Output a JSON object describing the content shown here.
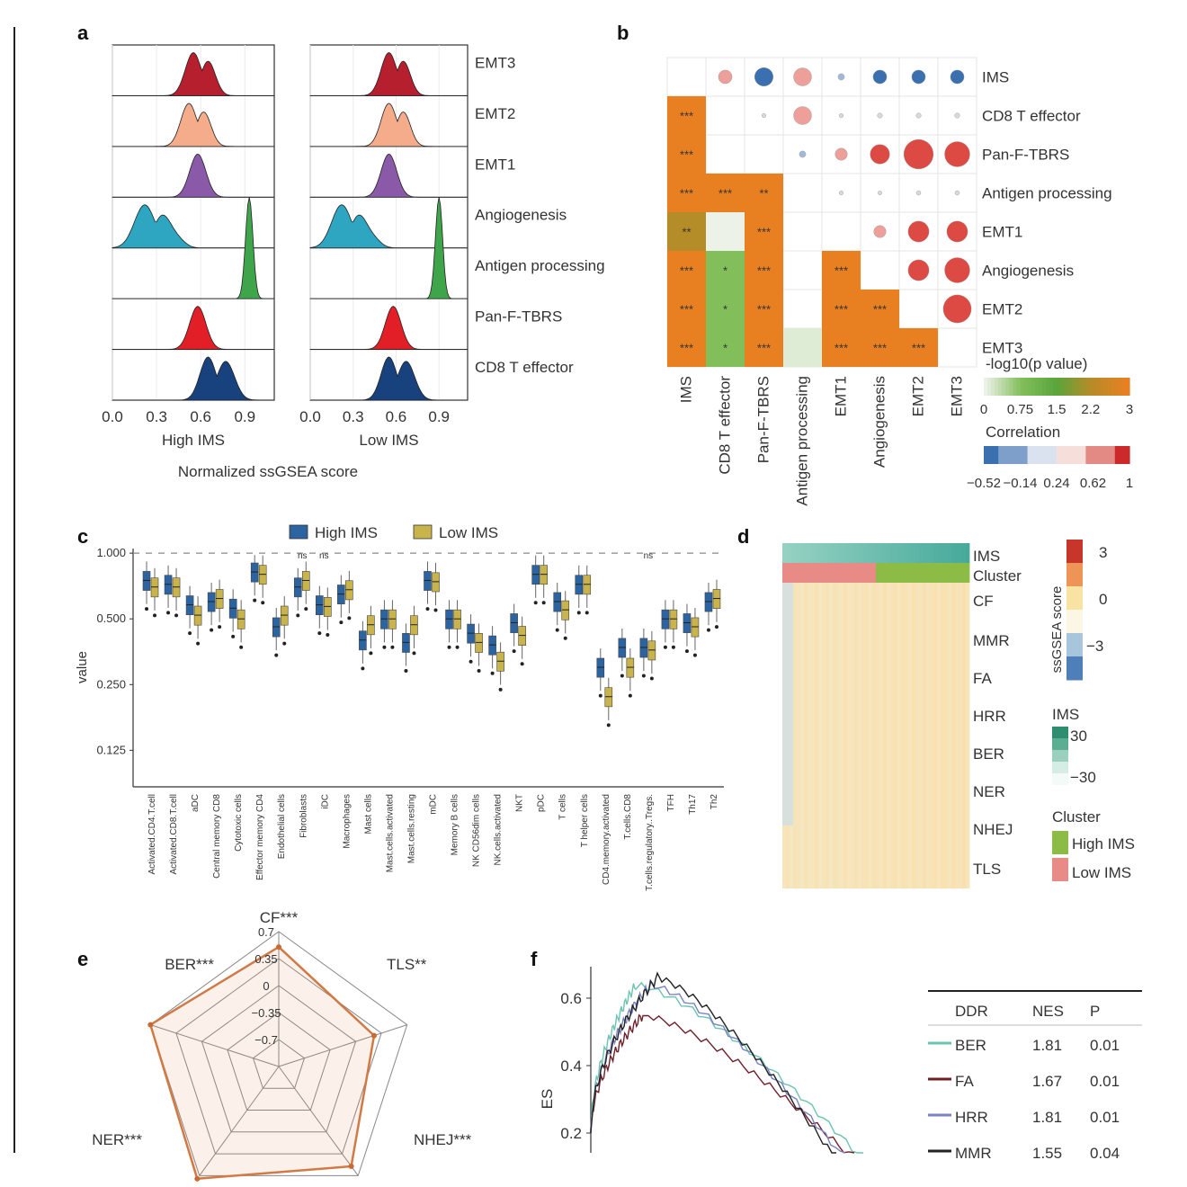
{
  "panels": [
    "a",
    "b",
    "c",
    "d",
    "e",
    "f"
  ],
  "chart_data": [
    {
      "id": "a",
      "type": "area",
      "subtype": "ridgeline",
      "facets": [
        "High IMS",
        "Low IMS"
      ],
      "xlabel": "Normalized ssGSEA score",
      "xticks": [
        "0.0",
        "0.3",
        "0.6",
        "0.9"
      ],
      "xlim": [
        0,
        1.1
      ],
      "series": [
        {
          "name": "EMT3",
          "color": "#b51f2e",
          "peak": {
            "High IMS": 0.55,
            "Low IMS": 0.55
          }
        },
        {
          "name": "EMT2",
          "color": "#f5ac8b",
          "peak": {
            "High IMS": 0.52,
            "Low IMS": 0.55
          }
        },
        {
          "name": "EMT1",
          "color": "#8a5aa8",
          "peak": {
            "High IMS": 0.58,
            "Low IMS": 0.55
          }
        },
        {
          "name": "Angiogenesis",
          "color": "#2ea6c2",
          "peak": {
            "High IMS": 0.22,
            "Low IMS": 0.22
          }
        },
        {
          "name": "Antigen processing",
          "color": "#3fa54a",
          "peak": {
            "High IMS": 0.93,
            "Low IMS": 0.9
          }
        },
        {
          "name": "Pan-F-TBRS",
          "color": "#e21f26",
          "peak": {
            "High IMS": 0.58,
            "Low IMS": 0.58
          }
        },
        {
          "name": "CD8 T effector",
          "color": "#17427e",
          "peak": {
            "High IMS": 0.65,
            "Low IMS": 0.55
          }
        }
      ]
    },
    {
      "id": "b",
      "type": "heatmap",
      "subtype": "correlation matrix (lower: -log10 p, upper: correlation)",
      "rows": [
        "IMS",
        "CD8 T effector",
        "Pan-F-TBRS",
        "Antigen processing",
        "EMT1",
        "Angiogenesis",
        "EMT2",
        "EMT3"
      ],
      "columns": [
        "IMS",
        "CD8 T effector",
        "Pan-F-TBRS",
        "Antigen processing",
        "EMT1",
        "Angiogenesis",
        "EMT2",
        "EMT3"
      ],
      "lower": [
        [
          1,
          0,
          "***"
        ],
        [
          2,
          0,
          "***"
        ],
        [
          3,
          0,
          "***"
        ],
        [
          3,
          1,
          "***"
        ],
        [
          3,
          2,
          "**"
        ],
        [
          4,
          0,
          "**"
        ],
        [
          4,
          1,
          ""
        ],
        [
          4,
          2,
          "***"
        ],
        [
          5,
          0,
          "***"
        ],
        [
          5,
          1,
          "*"
        ],
        [
          5,
          2,
          "***"
        ],
        [
          5,
          4,
          "***"
        ],
        [
          6,
          0,
          "***"
        ],
        [
          6,
          1,
          "*"
        ],
        [
          6,
          2,
          "***"
        ],
        [
          6,
          4,
          "***"
        ],
        [
          6,
          5,
          "***"
        ],
        [
          7,
          0,
          "***"
        ],
        [
          7,
          1,
          "*"
        ],
        [
          7,
          2,
          "***"
        ],
        [
          7,
          3,
          ""
        ],
        [
          7,
          4,
          "***"
        ],
        [
          7,
          5,
          "***"
        ],
        [
          7,
          6,
          "***"
        ]
      ],
      "lower_values": [
        3,
        3,
        3,
        3,
        3,
        2.2,
        0,
        3,
        3,
        0.75,
        3,
        3,
        3,
        0.75,
        3,
        3,
        3,
        3,
        0.75,
        3,
        0.1,
        3,
        3,
        3
      ],
      "upper": [
        {
          "r": 0,
          "c": 1,
          "corr": 0.35
        },
        {
          "r": 0,
          "c": 2,
          "corr": -0.52
        },
        {
          "r": 0,
          "c": 3,
          "corr": 0.5
        },
        {
          "r": 0,
          "c": 4,
          "corr": -0.1
        },
        {
          "r": 0,
          "c": 5,
          "corr": -0.35
        },
        {
          "r": 0,
          "c": 6,
          "corr": -0.35
        },
        {
          "r": 0,
          "c": 7,
          "corr": -0.35
        },
        {
          "r": 1,
          "c": 2,
          "corr": 0.02
        },
        {
          "r": 1,
          "c": 3,
          "corr": 0.5
        },
        {
          "r": 1,
          "c": 4,
          "corr": 0.02
        },
        {
          "r": 1,
          "c": 5,
          "corr": 0.05
        },
        {
          "r": 1,
          "c": 6,
          "corr": 0.05
        },
        {
          "r": 1,
          "c": 7,
          "corr": 0.05
        },
        {
          "r": 2,
          "c": 3,
          "corr": -0.1
        },
        {
          "r": 2,
          "c": 4,
          "corr": 0.3
        },
        {
          "r": 2,
          "c": 5,
          "corr": 0.55
        },
        {
          "r": 2,
          "c": 6,
          "corr": 0.9
        },
        {
          "r": 2,
          "c": 7,
          "corr": 0.75
        },
        {
          "r": 3,
          "c": 4,
          "corr": 0.02
        },
        {
          "r": 3,
          "c": 5,
          "corr": 0.02
        },
        {
          "r": 3,
          "c": 6,
          "corr": 0.03
        },
        {
          "r": 3,
          "c": 7,
          "corr": 0.03
        },
        {
          "r": 4,
          "c": 5,
          "corr": 0.3
        },
        {
          "r": 4,
          "c": 6,
          "corr": 0.6
        },
        {
          "r": 4,
          "c": 7,
          "corr": 0.6
        },
        {
          "r": 5,
          "c": 6,
          "corr": 0.6
        },
        {
          "r": 5,
          "c": 7,
          "corr": 0.75
        },
        {
          "r": 6,
          "c": 7,
          "corr": 0.85
        }
      ],
      "legend_p": {
        "title": "-log10(p value)",
        "ticks": [
          "0",
          "0.75",
          "1.5",
          "2.2",
          "3"
        ]
      },
      "legend_corr": {
        "title": "Correlation",
        "ticks": [
          "−0.52",
          "−0.14",
          "0.24",
          "0.62",
          "1"
        ]
      }
    },
    {
      "id": "c",
      "type": "box",
      "ylabel": "value",
      "ylog": true,
      "yticks": [
        "1.000",
        "0.500",
        "0.250",
        "0.125"
      ],
      "ytick_values": [
        1.0,
        0.5,
        0.25,
        0.125
      ],
      "legend": [
        "High IMS",
        "Low IMS"
      ],
      "categories": [
        "Activated.CD4.T.cell",
        "Activated.CD8.T.cell",
        "aDC",
        "Central memory CD8",
        "Cytotoxic cells",
        "Effector memory CD4",
        "Endothelial cells",
        "Fibroblasts",
        "iDC",
        "Macrophages",
        "Mast cells",
        "Mast.cells.activated",
        "Mast.cells.resting",
        "mDC",
        "Memory B cells",
        "NK CD56dim cells",
        "NK.cells.activated",
        "NKT",
        "pDC",
        "T cells",
        "T helper cells",
        "CD4.memory.activated",
        "T.cells.CD8",
        "T.cells.regulatory..Tregs.",
        "TFH",
        "Th17",
        "Th2"
      ],
      "annotations": [
        {
          "category": "Fibroblasts",
          "text": "ns"
        },
        {
          "category": "iDC",
          "text": "ns"
        },
        {
          "category": "T.cells.regulatory..Tregs.",
          "text": "ns"
        }
      ],
      "series": [
        {
          "name": "High IMS",
          "median": [
            0.75,
            0.72,
            0.58,
            0.6,
            0.56,
            0.82,
            0.46,
            0.7,
            0.58,
            0.65,
            0.4,
            0.5,
            0.39,
            0.75,
            0.5,
            0.43,
            0.38,
            0.48,
            0.8,
            0.6,
            0.72,
            0.3,
            0.37,
            0.37,
            0.5,
            0.48,
            0.6
          ]
        },
        {
          "name": "Low IMS",
          "median": [
            0.7,
            0.7,
            0.52,
            0.62,
            0.5,
            0.8,
            0.52,
            0.75,
            0.57,
            0.68,
            0.47,
            0.5,
            0.47,
            0.74,
            0.5,
            0.39,
            0.32,
            0.42,
            0.8,
            0.55,
            0.72,
            0.22,
            0.3,
            0.36,
            0.5,
            0.46,
            0.62
          ]
        }
      ]
    },
    {
      "id": "d",
      "type": "heatmap",
      "rows": [
        "IMS",
        "Cluster",
        "CF",
        "MMR",
        "FA",
        "HRR",
        "BER",
        "NER",
        "NHEJ",
        "TLS"
      ],
      "legend_score": {
        "title": "ssGSEA score",
        "ticks": [
          "3",
          "0",
          "−3"
        ]
      },
      "legend_ims": {
        "title": "IMS",
        "ticks": [
          "30",
          "−30"
        ]
      },
      "legend_cluster": {
        "title": "Cluster",
        "items": [
          "High IMS",
          "Low IMS"
        ]
      }
    },
    {
      "id": "e",
      "type": "radar",
      "axes": [
        "CF***",
        "TLS**",
        "NHEJ***",
        "NER***",
        "BER***"
      ],
      "rings": [
        "0.7",
        "0.35",
        "0",
        "−0.35",
        "−0.7"
      ],
      "ring_values": [
        0.7,
        0.35,
        0,
        -0.35,
        -0.7
      ],
      "rmin": -1.05,
      "rmax": 0.7,
      "values": [
        0.5,
        0.25,
        0.55,
        0.75,
        0.7
      ]
    },
    {
      "id": "f",
      "type": "line",
      "ylabel": "ES",
      "yticks": [
        "0.6",
        "0.4",
        "0.2"
      ],
      "ytick_values": [
        0.6,
        0.4,
        0.2
      ],
      "table": {
        "headers": [
          "DDR",
          "NES",
          "P"
        ],
        "rows": [
          [
            "BER",
            "1.81",
            "0.01"
          ],
          [
            "FA",
            "1.67",
            "0.01"
          ],
          [
            "HRR",
            "1.81",
            "0.01"
          ],
          [
            "MMR",
            "1.55",
            "0.04"
          ]
        ]
      },
      "series": [
        {
          "name": "BER",
          "color": "#6cc4b0",
          "peak": 0.64
        },
        {
          "name": "FA",
          "color": "#6e1f2a",
          "peak": 0.55
        },
        {
          "name": "HRR",
          "color": "#7a83c4",
          "peak": 0.64
        },
        {
          "name": "MMR",
          "color": "#222222",
          "peak": 0.66
        }
      ]
    }
  ]
}
